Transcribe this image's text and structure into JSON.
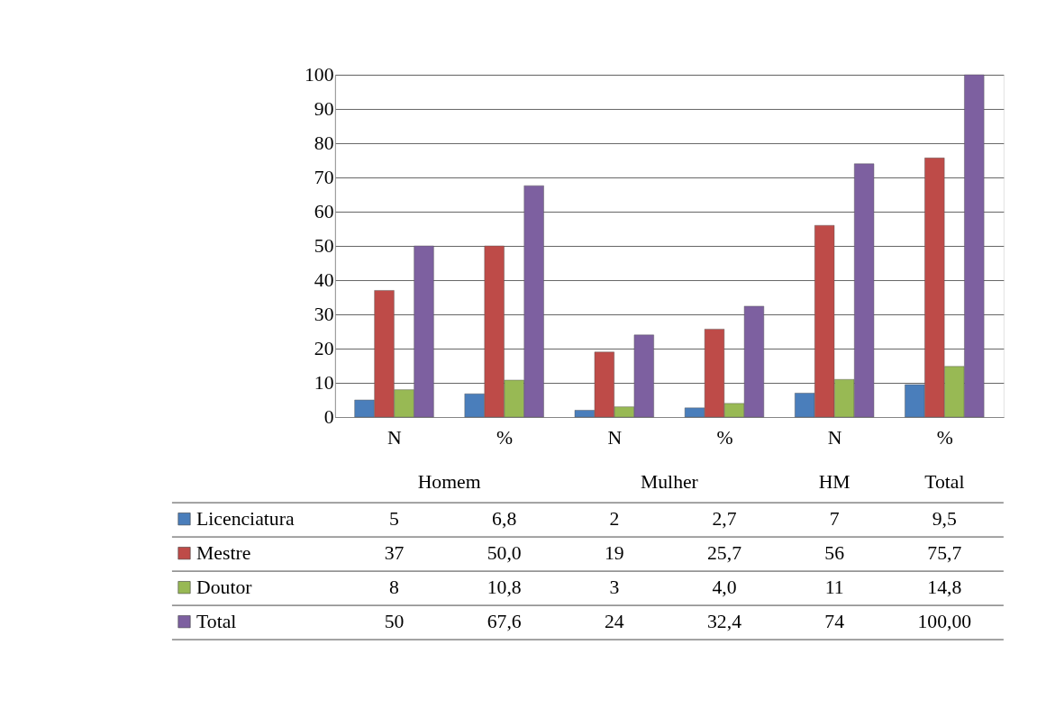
{
  "chart_data": {
    "type": "bar",
    "categories": [
      "N",
      "%",
      "N",
      "%",
      "N",
      "%"
    ],
    "annotations": [
      "Homem",
      "Mulher",
      "HM",
      "Total"
    ],
    "series": [
      {
        "name": "Licenciatura",
        "color": "#4a7ebb",
        "values": [
          5,
          6.8,
          2,
          2.7,
          7,
          9.5
        ],
        "value_labels": [
          "5",
          "6,8",
          "2",
          "2,7",
          "7",
          "9,5"
        ]
      },
      {
        "name": "Mestre",
        "color": "#be4b48",
        "values": [
          37,
          50.0,
          19,
          25.7,
          56,
          75.7
        ],
        "value_labels": [
          "37",
          "50,0",
          "19",
          "25,7",
          "56",
          "75,7"
        ]
      },
      {
        "name": "Doutor",
        "color": "#98b954",
        "values": [
          8,
          10.8,
          3,
          4.0,
          11,
          14.8
        ],
        "value_labels": [
          "8",
          "10,8",
          "3",
          "4,0",
          "11",
          "14,8"
        ]
      },
      {
        "name": "Total",
        "color": "#7d60a0",
        "values": [
          50,
          67.6,
          24,
          32.4,
          74,
          100.0
        ],
        "value_labels": [
          "50",
          "67,6",
          "24",
          "32,4",
          "74",
          "100,00"
        ]
      }
    ],
    "ylim": [
      0,
      100
    ],
    "yticks": [
      0,
      10,
      20,
      30,
      40,
      50,
      60,
      70,
      80,
      90,
      100
    ],
    "grid": "y",
    "legend": "bottom left"
  }
}
